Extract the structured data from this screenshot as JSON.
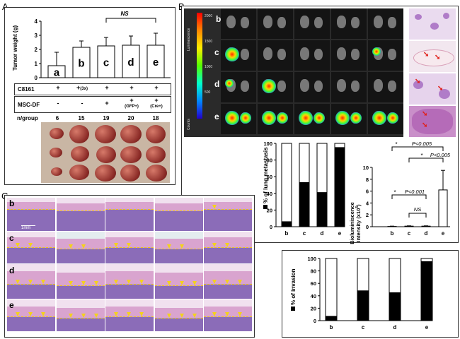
{
  "panels": {
    "A": "A",
    "B": "B",
    "C": "C"
  },
  "panelA": {
    "ylabel": "Tumor weight (g)",
    "yticks": [
      "0",
      "1",
      "2",
      "3",
      "4"
    ],
    "ns_label": "NS",
    "bars": [
      {
        "label": "a",
        "value": 0.85,
        "error": 0.95
      },
      {
        "label": "b",
        "value": 2.15,
        "error": 0.45
      },
      {
        "label": "c",
        "value": 2.25,
        "error": 0.6
      },
      {
        "label": "d",
        "value": 2.3,
        "error": 0.65
      },
      {
        "label": "e",
        "value": 2.3,
        "error": 0.85
      }
    ],
    "table": {
      "rows": [
        {
          "label": "C8161",
          "cells": [
            [
              "+",
              ""
            ],
            [
              "+",
              "(3x)"
            ],
            [
              "+",
              ""
            ],
            [
              "+",
              ""
            ],
            [
              "+",
              ""
            ]
          ]
        },
        {
          "label": "MSC-DF",
          "cells": [
            [
              "-",
              ""
            ],
            [
              "-",
              ""
            ],
            [
              "+",
              ""
            ],
            [
              "+",
              "(GFP+)"
            ],
            [
              "+",
              "(Cre+)"
            ]
          ]
        }
      ],
      "n_label": "n/group",
      "n_values": [
        "6",
        "15",
        "19",
        "20",
        "18"
      ]
    }
  },
  "panelB": {
    "row_labels": [
      "b",
      "c",
      "d",
      "e"
    ],
    "colorbar": {
      "ticks": [
        "2000",
        "1500",
        "1000",
        "500"
      ],
      "label_top": "Luminescence",
      "label_bottom": "Counts"
    },
    "lung_chart": {
      "ylabel": "% of lung metastasis",
      "yticks": [
        "0",
        "20",
        "40",
        "60",
        "80",
        "100"
      ],
      "categories": [
        "b",
        "c",
        "d",
        "e"
      ],
      "metastasis": [
        6,
        53,
        41,
        95
      ]
    },
    "biolum_chart": {
      "ylabel": "Bioluminiscence",
      "ylabel2": "Intensity (x10",
      "ylabel2_sup": "5",
      "ylabel2_end": ")",
      "yticks": [
        "0",
        "2",
        "4",
        "6",
        "8",
        "10"
      ],
      "categories": [
        "b",
        "c",
        "d",
        "e"
      ],
      "values": [
        0.05,
        0.1,
        0.1,
        6.2
      ],
      "errors": [
        0.05,
        0.05,
        0.05,
        3.3
      ],
      "annotations": {
        "p1": "P<0.005",
        "p2": "P<0.005",
        "p3": "P<0.001",
        "ns": "NS",
        "star": "*"
      }
    }
  },
  "panelC": {
    "row_labels": [
      "b",
      "c",
      "d",
      "e"
    ],
    "scale_bar": "1mm",
    "invasion_chart": {
      "ylabel": "% of invasion",
      "yticks": [
        "0",
        "20",
        "40",
        "60",
        "80",
        "100"
      ],
      "categories": [
        "b",
        "c",
        "d",
        "e"
      ],
      "invasion": [
        7,
        48,
        45,
        95
      ]
    }
  },
  "colors": {
    "black_fill": "#000000",
    "white_fill": "#ffffff",
    "he_purple": "#b9a2d6",
    "dashed_line": "#f0c21a",
    "tumor_red": "#8a2a26"
  }
}
